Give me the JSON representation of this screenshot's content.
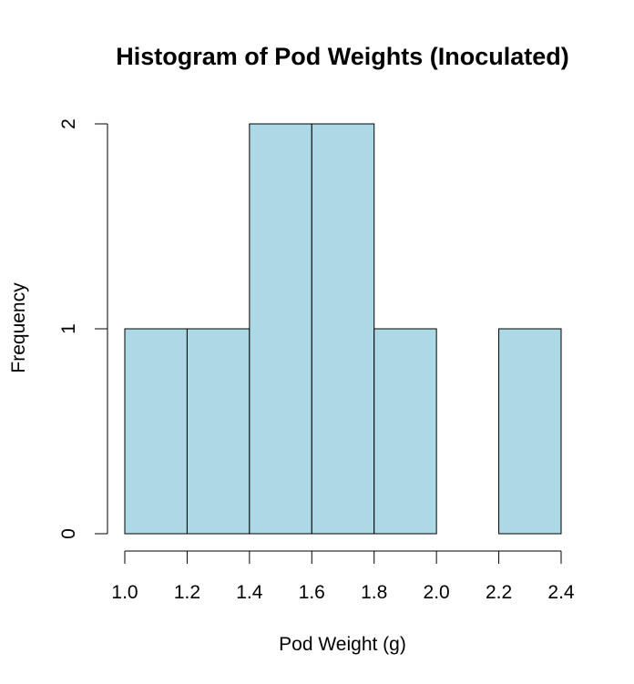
{
  "chart_data": {
    "type": "bar",
    "title": "Histogram of Pod Weights (Inoculated)",
    "xlabel": "Pod Weight (g)",
    "ylabel": "Frequency",
    "bins": [
      {
        "start": 1.0,
        "end": 1.2,
        "count": 1
      },
      {
        "start": 1.2,
        "end": 1.4,
        "count": 1
      },
      {
        "start": 1.4,
        "end": 1.6,
        "count": 2
      },
      {
        "start": 1.6,
        "end": 1.8,
        "count": 2
      },
      {
        "start": 1.8,
        "end": 2.0,
        "count": 1
      },
      {
        "start": 2.0,
        "end": 2.2,
        "count": 0
      },
      {
        "start": 2.2,
        "end": 2.4,
        "count": 1
      }
    ],
    "xlim": [
      1.0,
      2.4
    ],
    "ylim": [
      0,
      2
    ],
    "x_ticks": [
      "1.0",
      "1.2",
      "1.4",
      "1.6",
      "1.8",
      "2.0",
      "2.2",
      "2.4"
    ],
    "y_ticks": [
      "0",
      "1",
      "2"
    ],
    "bar_color": "#add8e6",
    "grid": false
  }
}
